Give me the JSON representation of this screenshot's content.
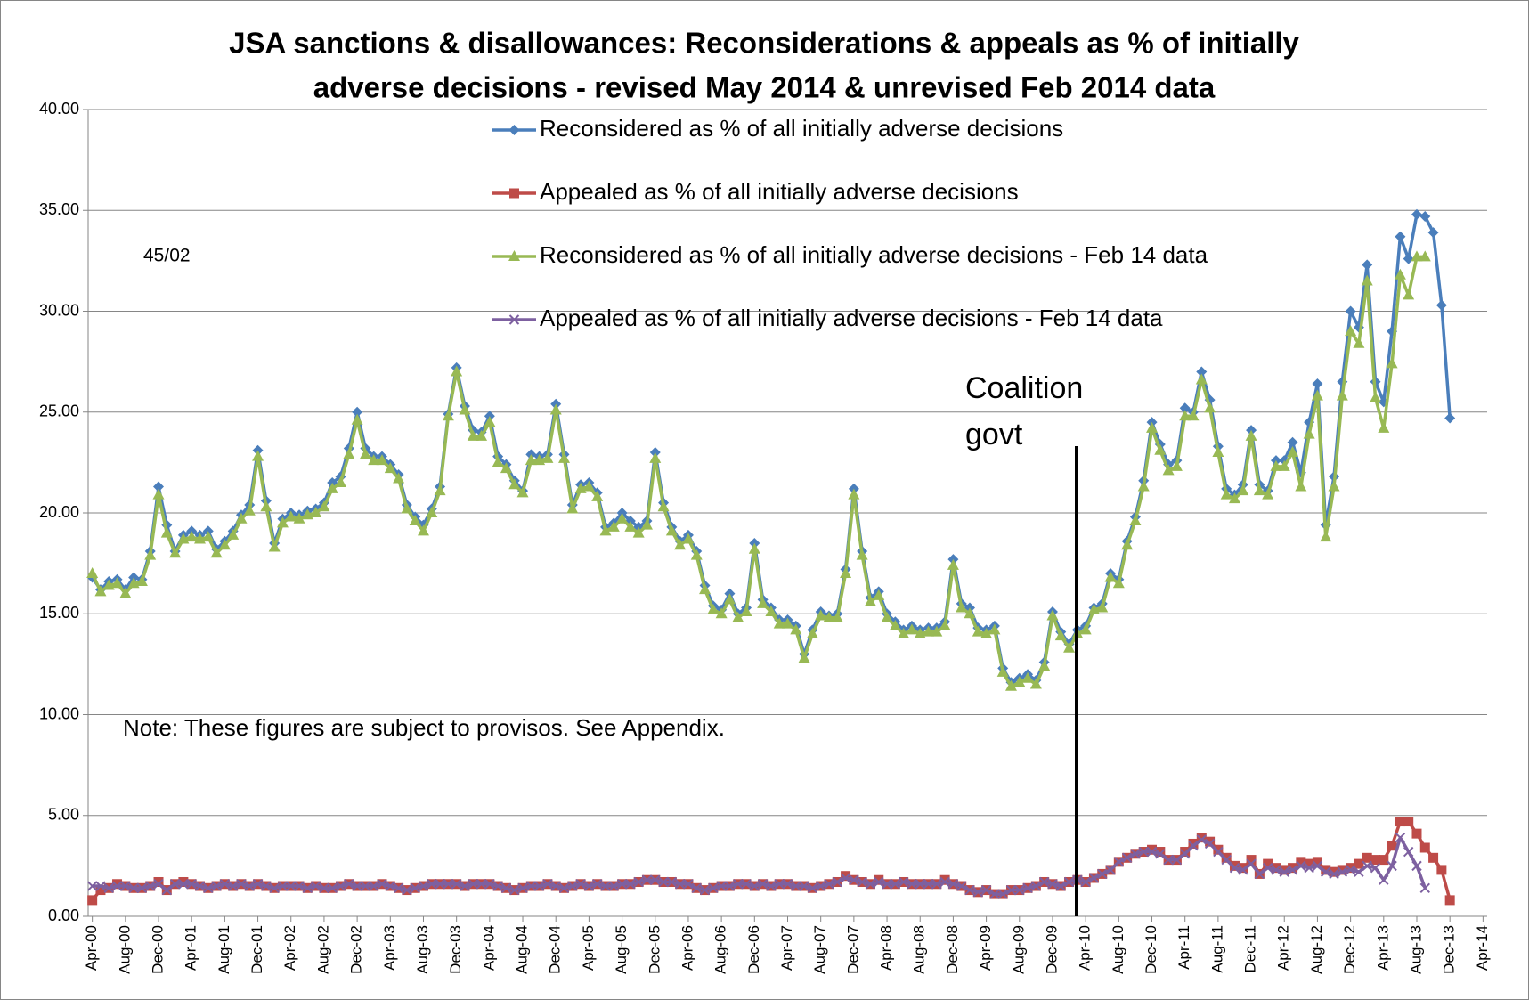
{
  "chart_data": {
    "type": "line",
    "title": [
      "JSA sanctions & disallowances: Reconsiderations & appeals as % of initially",
      "adverse decisions - revised May 2014 & unrevised Feb 2014 data"
    ],
    "annotations": [
      {
        "text": "45/02"
      },
      {
        "lines": [
          "Coalition",
          "govt"
        ]
      },
      {
        "text": "Note: These figures are subject to provisos. See Appendix."
      }
    ],
    "legend": "top",
    "grid": true,
    "ylim": [
      0,
      40
    ],
    "yticks": [
      {
        "value": 0,
        "label": "0.00"
      },
      {
        "value": 5,
        "label": "5.00"
      },
      {
        "value": 10,
        "label": "10.00"
      },
      {
        "value": 15,
        "label": "15.00"
      },
      {
        "value": 20,
        "label": "20.00"
      },
      {
        "value": 25,
        "label": "25.00"
      },
      {
        "value": 30,
        "label": "30.00"
      },
      {
        "value": 35,
        "label": "35.00"
      },
      {
        "value": 40,
        "label": "40.00"
      }
    ],
    "categories": [
      "Apr-00",
      null,
      null,
      null,
      "Aug-00",
      null,
      null,
      null,
      "Dec-00",
      null,
      null,
      null,
      "Apr-01",
      null,
      null,
      null,
      "Aug-01",
      null,
      null,
      null,
      "Dec-01",
      null,
      null,
      null,
      "Apr-02",
      null,
      null,
      null,
      "Aug-02",
      null,
      null,
      null,
      "Dec-02",
      null,
      null,
      null,
      "Apr-03",
      null,
      null,
      null,
      "Aug-03",
      null,
      null,
      null,
      "Dec-03",
      null,
      null,
      null,
      "Apr-04",
      null,
      null,
      null,
      "Aug-04",
      null,
      null,
      null,
      "Dec-04",
      null,
      null,
      null,
      "Apr-05",
      null,
      null,
      null,
      "Aug-05",
      null,
      null,
      null,
      "Dec-05",
      null,
      null,
      null,
      "Apr-06",
      null,
      null,
      null,
      "Aug-06",
      null,
      null,
      null,
      "Dec-06",
      null,
      null,
      null,
      "Apr-07",
      null,
      null,
      null,
      "Aug-07",
      null,
      null,
      null,
      "Dec-07",
      null,
      null,
      null,
      "Apr-08",
      null,
      null,
      null,
      "Aug-08",
      null,
      null,
      null,
      "Dec-08",
      null,
      null,
      null,
      "Apr-09",
      null,
      null,
      null,
      "Aug-09",
      null,
      null,
      null,
      "Dec-09",
      null,
      null,
      null,
      "Apr-10",
      null,
      null,
      null,
      "Aug-10",
      null,
      null,
      null,
      "Dec-10",
      null,
      null,
      null,
      "Apr-11",
      null,
      null,
      null,
      "Aug-11",
      null,
      null,
      null,
      "Dec-11",
      null,
      null,
      null,
      "Apr-12",
      null,
      null,
      null,
      "Aug-12",
      null,
      null,
      null,
      "Dec-12",
      null,
      null,
      null,
      "Apr-13",
      null,
      null,
      null,
      "Aug-13",
      null,
      null,
      null,
      "Dec-13",
      null,
      null,
      null,
      "Apr-14"
    ],
    "series": [
      {
        "name": "Reconsidered as % of all initially adverse decisions",
        "color": "#4a7ebb",
        "marker": "diamond",
        "values": [
          16.8,
          16.2,
          16.6,
          16.7,
          16.2,
          16.8,
          16.7,
          18.1,
          21.3,
          19.4,
          18.1,
          18.9,
          19.1,
          18.9,
          19.1,
          18.2,
          18.6,
          19.1,
          19.9,
          20.4,
          23.1,
          20.6,
          18.5,
          19.7,
          20.0,
          19.9,
          20.1,
          20.2,
          20.5,
          21.5,
          21.8,
          23.2,
          25.0,
          23.2,
          22.8,
          22.8,
          22.4,
          21.9,
          20.4,
          19.8,
          19.4,
          20.2,
          21.3,
          24.9,
          27.2,
          25.3,
          24.1,
          24.0,
          24.8,
          22.8,
          22.4,
          21.6,
          21.1,
          22.9,
          22.8,
          22.9,
          25.4,
          22.9,
          20.4,
          21.4,
          21.5,
          21.0,
          19.3,
          19.5,
          20.0,
          19.6,
          19.3,
          19.6,
          23.0,
          20.5,
          19.3,
          18.6,
          18.9,
          18.1,
          16.4,
          15.4,
          15.2,
          16.0,
          15.0,
          15.3,
          18.5,
          15.7,
          15.3,
          14.7,
          14.7,
          14.4,
          13.0,
          14.2,
          15.1,
          14.9,
          15.0,
          17.2,
          21.2,
          18.1,
          15.8,
          16.1,
          15.0,
          14.6,
          14.2,
          14.4,
          14.2,
          14.3,
          14.3,
          14.6,
          17.7,
          15.5,
          15.3,
          14.3,
          14.2,
          14.4,
          12.3,
          11.6,
          11.8,
          12.0,
          11.7,
          12.6,
          15.1,
          14.1,
          13.5,
          14.2,
          14.4,
          15.3,
          15.5,
          17.0,
          16.7,
          18.6,
          19.8,
          21.6,
          24.5,
          23.4,
          22.4,
          22.6,
          25.2,
          25.0,
          27.0,
          25.6,
          23.3,
          21.2,
          20.9,
          21.4,
          24.1,
          21.4,
          21.1,
          22.6,
          22.6,
          23.5,
          22.0,
          24.5,
          26.4,
          19.4,
          21.8,
          26.5,
          30.0,
          29.2,
          32.3,
          26.5,
          25.5,
          29.0,
          33.7,
          32.6,
          34.8,
          34.7,
          33.9,
          30.3,
          24.7,
          null,
          null,
          null,
          null
        ]
      },
      {
        "name": "Appealed as % of all initially adverse decisions",
        "color": "#be4b48",
        "marker": "square",
        "values": [
          0.8,
          1.3,
          1.4,
          1.6,
          1.5,
          1.4,
          1.4,
          1.5,
          1.7,
          1.3,
          1.6,
          1.7,
          1.6,
          1.5,
          1.4,
          1.5,
          1.6,
          1.5,
          1.6,
          1.5,
          1.6,
          1.5,
          1.4,
          1.5,
          1.5,
          1.5,
          1.4,
          1.5,
          1.4,
          1.4,
          1.5,
          1.6,
          1.5,
          1.5,
          1.5,
          1.6,
          1.5,
          1.4,
          1.3,
          1.4,
          1.5,
          1.6,
          1.6,
          1.6,
          1.6,
          1.5,
          1.6,
          1.6,
          1.6,
          1.5,
          1.4,
          1.3,
          1.4,
          1.5,
          1.5,
          1.6,
          1.5,
          1.4,
          1.5,
          1.6,
          1.5,
          1.6,
          1.5,
          1.5,
          1.6,
          1.6,
          1.7,
          1.8,
          1.8,
          1.7,
          1.7,
          1.6,
          1.6,
          1.4,
          1.3,
          1.4,
          1.5,
          1.5,
          1.6,
          1.6,
          1.5,
          1.6,
          1.5,
          1.6,
          1.6,
          1.5,
          1.5,
          1.4,
          1.5,
          1.6,
          1.7,
          2.0,
          1.8,
          1.7,
          1.6,
          1.8,
          1.6,
          1.6,
          1.7,
          1.6,
          1.6,
          1.6,
          1.6,
          1.8,
          1.6,
          1.5,
          1.3,
          1.2,
          1.3,
          1.1,
          1.1,
          1.3,
          1.3,
          1.4,
          1.5,
          1.7,
          1.6,
          1.5,
          1.7,
          1.8,
          1.7,
          1.9,
          2.1,
          2.3,
          2.7,
          2.9,
          3.1,
          3.2,
          3.3,
          3.2,
          2.8,
          2.8,
          3.2,
          3.6,
          3.9,
          3.7,
          3.3,
          2.9,
          2.5,
          2.4,
          2.8,
          2.1,
          2.6,
          2.4,
          2.3,
          2.4,
          2.7,
          2.6,
          2.7,
          2.3,
          2.2,
          2.3,
          2.4,
          2.6,
          2.9,
          2.8,
          2.8,
          3.5,
          4.7,
          4.7,
          4.1,
          3.4,
          2.9,
          2.3,
          0.8,
          null,
          null,
          null,
          null
        ]
      },
      {
        "name": "Reconsidered as % of all initially adverse decisions - Feb 14 data",
        "color": "#98b954",
        "marker": "triangle",
        "values": [
          17.0,
          16.1,
          16.4,
          16.5,
          16.0,
          16.5,
          16.6,
          17.9,
          20.9,
          19.0,
          18.0,
          18.7,
          18.8,
          18.7,
          18.8,
          18.0,
          18.4,
          18.9,
          19.7,
          20.1,
          22.8,
          20.3,
          18.3,
          19.5,
          19.8,
          19.7,
          19.9,
          20.0,
          20.3,
          21.2,
          21.5,
          22.9,
          24.6,
          22.9,
          22.6,
          22.6,
          22.2,
          21.7,
          20.2,
          19.6,
          19.1,
          20.0,
          21.1,
          24.8,
          27.0,
          25.1,
          23.8,
          23.8,
          24.5,
          22.5,
          22.2,
          21.4,
          21.0,
          22.6,
          22.6,
          22.7,
          25.1,
          22.7,
          20.2,
          21.2,
          21.3,
          20.8,
          19.1,
          19.3,
          19.7,
          19.3,
          19.0,
          19.4,
          22.7,
          20.3,
          19.1,
          18.4,
          18.7,
          17.9,
          16.2,
          15.2,
          15.0,
          15.7,
          14.8,
          15.1,
          18.2,
          15.5,
          15.1,
          14.5,
          14.5,
          14.2,
          12.8,
          14.0,
          14.9,
          14.8,
          14.8,
          17.0,
          20.9,
          17.9,
          15.6,
          15.9,
          14.8,
          14.4,
          14.0,
          14.2,
          14.0,
          14.1,
          14.1,
          14.4,
          17.4,
          15.3,
          15.0,
          14.1,
          14.0,
          14.2,
          12.1,
          11.4,
          11.6,
          11.8,
          11.5,
          12.4,
          14.9,
          13.9,
          13.3,
          14.0,
          14.2,
          15.2,
          15.3,
          16.8,
          16.5,
          18.4,
          19.6,
          21.3,
          24.2,
          23.1,
          22.1,
          22.3,
          24.8,
          24.8,
          26.6,
          25.2,
          23.0,
          20.9,
          20.7,
          21.1,
          23.8,
          21.1,
          20.9,
          22.3,
          22.3,
          23.0,
          21.3,
          23.9,
          25.8,
          18.8,
          21.3,
          25.8,
          29.0,
          28.4,
          31.5,
          25.7,
          24.2,
          27.4,
          31.8,
          30.8,
          32.7,
          32.7,
          null,
          null,
          null,
          null,
          null,
          null,
          null
        ]
      },
      {
        "name": "Appealed as % of all initially adverse decisions - Feb 14 data",
        "color": "#7d60a0",
        "marker": "x",
        "values": [
          1.5,
          1.5,
          1.4,
          1.5,
          1.5,
          1.4,
          1.4,
          1.5,
          1.6,
          1.3,
          1.6,
          1.6,
          1.6,
          1.5,
          1.4,
          1.5,
          1.6,
          1.5,
          1.6,
          1.5,
          1.6,
          1.5,
          1.4,
          1.5,
          1.5,
          1.5,
          1.4,
          1.5,
          1.4,
          1.4,
          1.5,
          1.6,
          1.5,
          1.5,
          1.5,
          1.6,
          1.5,
          1.4,
          1.3,
          1.4,
          1.5,
          1.6,
          1.6,
          1.6,
          1.6,
          1.5,
          1.6,
          1.6,
          1.6,
          1.5,
          1.4,
          1.3,
          1.4,
          1.5,
          1.5,
          1.6,
          1.5,
          1.4,
          1.5,
          1.6,
          1.5,
          1.6,
          1.5,
          1.5,
          1.6,
          1.6,
          1.7,
          1.8,
          1.8,
          1.7,
          1.7,
          1.6,
          1.6,
          1.4,
          1.3,
          1.4,
          1.5,
          1.5,
          1.6,
          1.6,
          1.5,
          1.6,
          1.5,
          1.6,
          1.6,
          1.5,
          1.5,
          1.4,
          1.5,
          1.6,
          1.7,
          1.9,
          1.8,
          1.7,
          1.6,
          1.7,
          1.6,
          1.6,
          1.7,
          1.6,
          1.6,
          1.6,
          1.6,
          1.7,
          1.6,
          1.5,
          1.3,
          1.2,
          1.3,
          1.1,
          1.1,
          1.3,
          1.3,
          1.4,
          1.5,
          1.7,
          1.6,
          1.5,
          1.7,
          1.8,
          1.7,
          1.9,
          2.1,
          2.3,
          2.7,
          2.9,
          3.1,
          3.2,
          3.2,
          3.1,
          2.8,
          2.8,
          3.1,
          3.5,
          3.8,
          3.6,
          3.2,
          2.8,
          2.4,
          2.3,
          2.6,
          2.1,
          2.4,
          2.3,
          2.2,
          2.3,
          2.5,
          2.4,
          2.5,
          2.2,
          2.1,
          2.2,
          2.3,
          2.2,
          2.5,
          2.4,
          1.8,
          2.5,
          3.9,
          3.2,
          2.5,
          1.4,
          null,
          null,
          null,
          null,
          null,
          null,
          null
        ]
      }
    ]
  }
}
